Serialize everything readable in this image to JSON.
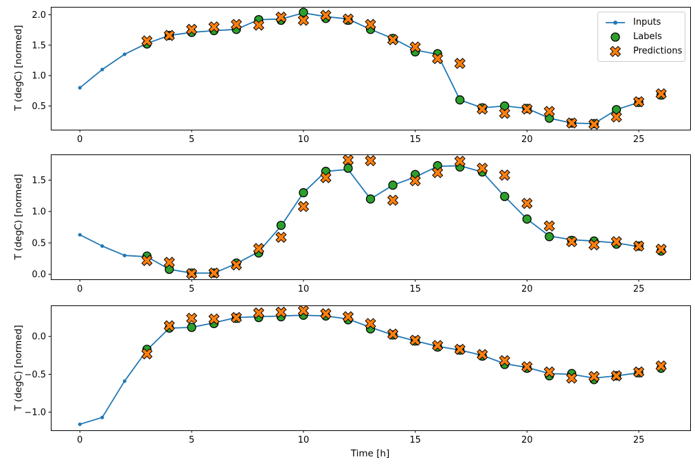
{
  "figure": {
    "background": "#ffffff",
    "xlabel": "Time [h]",
    "text_color": "#000000",
    "spine_color": "#000000",
    "legend": {
      "position": "upper-right",
      "border_color": "#cccccc",
      "items": [
        {
          "label": "Inputs",
          "marker": "line-dot",
          "color": "#1f77b4",
          "edge": "#000000"
        },
        {
          "label": "Labels",
          "marker": "circle",
          "color": "#2ca02c",
          "edge": "#000000"
        },
        {
          "label": "Predictions",
          "marker": "X",
          "color": "#ff7f0e",
          "edge": "#000000"
        }
      ]
    }
  },
  "chart_data": [
    {
      "type": "line",
      "title": "",
      "xlabel": "",
      "ylabel": "T (degC) [normed]",
      "xlim": [
        -1.3,
        27.3
      ],
      "ylim": [
        0.11,
        2.13
      ],
      "xticks": [
        0,
        5,
        10,
        15,
        20,
        25
      ],
      "xtick_labels": [
        "0",
        "5",
        "10",
        "15",
        "20",
        "25"
      ],
      "yticks": [
        0.5,
        1.0,
        1.5,
        2.0
      ],
      "ytick_labels": [
        "0.5",
        "1.0",
        "1.5",
        "2.0"
      ],
      "grid": false,
      "series": [
        {
          "name": "Inputs",
          "marker": "dot",
          "line": true,
          "color": "#1f77b4",
          "x": [
            0,
            1,
            2,
            3,
            4,
            5,
            6,
            7,
            8,
            9,
            10,
            11,
            12,
            13,
            14,
            15,
            16,
            17,
            18,
            19,
            20,
            21,
            22,
            23,
            24,
            25
          ],
          "y": [
            0.8,
            1.1,
            1.35,
            1.53,
            1.66,
            1.71,
            1.74,
            1.76,
            1.92,
            1.93,
            2.03,
            1.97,
            1.93,
            1.76,
            1.61,
            1.42,
            1.35,
            0.6,
            0.47,
            0.5,
            0.46,
            0.3,
            0.22,
            0.21,
            0.44,
            0.56
          ]
        },
        {
          "name": "Labels",
          "marker": "circle",
          "line": false,
          "color": "#2ca02c",
          "edge": "#000000",
          "x": [
            3,
            4,
            5,
            6,
            7,
            8,
            9,
            10,
            11,
            12,
            13,
            14,
            15,
            16,
            17,
            18,
            19,
            20,
            21,
            22,
            23,
            24,
            25,
            26
          ],
          "y": [
            1.52,
            1.66,
            1.71,
            1.74,
            1.76,
            1.92,
            1.91,
            2.04,
            1.94,
            1.91,
            1.76,
            1.61,
            1.39,
            1.36,
            0.6,
            0.47,
            0.5,
            0.46,
            0.3,
            0.22,
            0.21,
            0.44,
            0.56,
            0.68
          ]
        },
        {
          "name": "Predictions",
          "marker": "X",
          "line": false,
          "color": "#ff7f0e",
          "edge": "#000000",
          "x": [
            3,
            4,
            5,
            6,
            7,
            8,
            9,
            10,
            11,
            12,
            13,
            14,
            15,
            16,
            17,
            18,
            19,
            20,
            21,
            22,
            23,
            24,
            25,
            26
          ],
          "y": [
            1.57,
            1.66,
            1.76,
            1.8,
            1.84,
            1.83,
            1.96,
            1.91,
            1.99,
            1.93,
            1.84,
            1.59,
            1.47,
            1.28,
            1.2,
            0.45,
            0.38,
            0.45,
            0.41,
            0.22,
            0.2,
            0.32,
            0.57,
            0.7
          ]
        }
      ]
    },
    {
      "type": "line",
      "title": "",
      "xlabel": "",
      "ylabel": "T (degC) [normed]",
      "xlim": [
        -1.3,
        27.3
      ],
      "ylim": [
        -0.08,
        1.91
      ],
      "xticks": [
        0,
        5,
        10,
        15,
        20,
        25
      ],
      "xtick_labels": [
        "0",
        "5",
        "10",
        "15",
        "20",
        "25"
      ],
      "yticks": [
        0.0,
        0.5,
        1.0,
        1.5
      ],
      "ytick_labels": [
        "0.0",
        "0.5",
        "1.0",
        "1.5"
      ],
      "grid": false,
      "series": [
        {
          "name": "Inputs",
          "marker": "dot",
          "line": true,
          "color": "#1f77b4",
          "x": [
            0,
            1,
            2,
            3,
            4,
            5,
            6,
            7,
            8,
            9,
            10,
            11,
            12,
            13,
            14,
            15,
            16,
            17,
            18,
            19,
            20,
            21,
            22,
            23,
            24,
            25
          ],
          "y": [
            0.63,
            0.45,
            0.3,
            0.28,
            0.08,
            0.02,
            0.02,
            0.17,
            0.36,
            0.77,
            1.3,
            1.64,
            1.67,
            1.2,
            1.42,
            1.55,
            1.72,
            1.73,
            1.63,
            1.24,
            0.88,
            0.61,
            0.55,
            0.53,
            0.5,
            0.44
          ]
        },
        {
          "name": "Labels",
          "marker": "circle",
          "line": false,
          "color": "#2ca02c",
          "edge": "#000000",
          "x": [
            3,
            4,
            5,
            6,
            7,
            8,
            9,
            10,
            11,
            12,
            13,
            14,
            15,
            16,
            17,
            18,
            19,
            20,
            21,
            22,
            23,
            24,
            25,
            26
          ],
          "y": [
            0.29,
            0.08,
            0.02,
            0.02,
            0.18,
            0.34,
            0.78,
            1.3,
            1.64,
            1.69,
            1.2,
            1.42,
            1.59,
            1.73,
            1.71,
            1.63,
            1.24,
            0.88,
            0.6,
            0.54,
            0.53,
            0.48,
            0.45,
            0.37
          ]
        },
        {
          "name": "Predictions",
          "marker": "X",
          "line": false,
          "color": "#ff7f0e",
          "edge": "#000000",
          "x": [
            3,
            4,
            5,
            6,
            7,
            8,
            9,
            10,
            11,
            12,
            13,
            14,
            15,
            16,
            17,
            18,
            19,
            20,
            21,
            22,
            23,
            24,
            25,
            26
          ],
          "y": [
            0.22,
            0.19,
            0.01,
            0.02,
            0.15,
            0.41,
            0.59,
            1.08,
            1.54,
            1.82,
            1.81,
            1.18,
            1.49,
            1.62,
            1.8,
            1.69,
            1.58,
            1.13,
            0.77,
            0.52,
            0.47,
            0.52,
            0.45,
            0.4
          ]
        }
      ]
    },
    {
      "type": "line",
      "title": "",
      "xlabel": "Time [h]",
      "ylabel": "T (degC) [normed]",
      "xlim": [
        -1.3,
        27.3
      ],
      "ylim": [
        -1.24,
        0.41
      ],
      "xticks": [
        0,
        5,
        10,
        15,
        20,
        25
      ],
      "xtick_labels": [
        "0",
        "5",
        "10",
        "15",
        "20",
        "25"
      ],
      "yticks": [
        -1.0,
        -0.5,
        0.0
      ],
      "ytick_labels": [
        "−1.0",
        "−0.5",
        "0.0"
      ],
      "grid": false,
      "series": [
        {
          "name": "Inputs",
          "marker": "dot",
          "line": true,
          "color": "#1f77b4",
          "x": [
            0,
            1,
            2,
            3,
            4,
            5,
            6,
            7,
            8,
            9,
            10,
            11,
            12,
            13,
            14,
            15,
            16,
            17,
            18,
            19,
            20,
            21,
            22,
            23,
            24,
            25
          ],
          "y": [
            -1.16,
            -1.07,
            -0.59,
            -0.18,
            0.11,
            0.12,
            0.18,
            0.25,
            0.26,
            0.27,
            0.28,
            0.27,
            0.23,
            0.12,
            0.02,
            -0.06,
            -0.13,
            -0.18,
            -0.25,
            -0.36,
            -0.41,
            -0.49,
            -0.5,
            -0.55,
            -0.52,
            -0.48
          ]
        },
        {
          "name": "Labels",
          "marker": "circle",
          "line": false,
          "color": "#2ca02c",
          "edge": "#000000",
          "x": [
            3,
            4,
            5,
            6,
            7,
            8,
            9,
            10,
            11,
            12,
            13,
            14,
            15,
            16,
            17,
            18,
            19,
            20,
            21,
            22,
            23,
            24,
            25,
            26
          ],
          "y": [
            -0.17,
            0.11,
            0.12,
            0.17,
            0.24,
            0.25,
            0.26,
            0.28,
            0.27,
            0.22,
            0.1,
            0.02,
            -0.06,
            -0.14,
            -0.18,
            -0.26,
            -0.37,
            -0.42,
            -0.52,
            -0.49,
            -0.57,
            -0.52,
            -0.48,
            -0.42
          ]
        },
        {
          "name": "Predictions",
          "marker": "X",
          "line": false,
          "color": "#ff7f0e",
          "edge": "#000000",
          "x": [
            3,
            4,
            5,
            6,
            7,
            8,
            9,
            10,
            11,
            12,
            13,
            14,
            15,
            16,
            17,
            18,
            19,
            20,
            21,
            22,
            23,
            24,
            25,
            26
          ],
          "y": [
            -0.23,
            0.14,
            0.24,
            0.23,
            0.25,
            0.31,
            0.32,
            0.34,
            0.3,
            0.26,
            0.17,
            0.03,
            -0.05,
            -0.12,
            -0.17,
            -0.24,
            -0.32,
            -0.4,
            -0.47,
            -0.55,
            -0.53,
            -0.52,
            -0.47,
            -0.39
          ]
        }
      ]
    }
  ]
}
